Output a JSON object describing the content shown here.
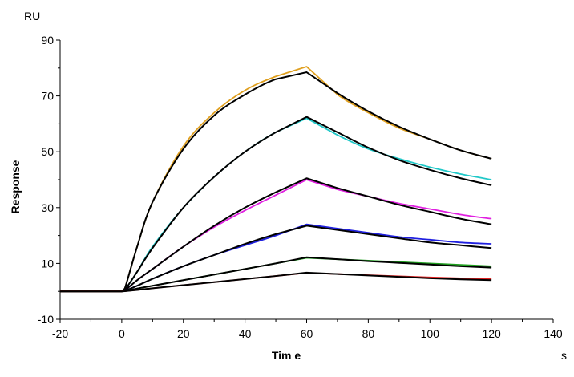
{
  "chart_data": {
    "type": "line",
    "title": "",
    "xlabel": "Tim e",
    "ylabel": "Response",
    "x_unit": "s",
    "y_unit": "RU",
    "xlim": [
      -20,
      140
    ],
    "ylim": [
      -10,
      90
    ],
    "x_ticks": [
      -20,
      0,
      20,
      40,
      60,
      80,
      100,
      120,
      140
    ],
    "y_ticks": [
      -10,
      10,
      30,
      50,
      70,
      90
    ],
    "grid": false,
    "legend": "none",
    "series": [
      {
        "color": "#e0a020",
        "x": [
          -20,
          0,
          1,
          5,
          10,
          20,
          30,
          40,
          50,
          60,
          70,
          80,
          90,
          100,
          110,
          120
        ],
        "y": [
          0,
          0,
          1,
          16,
          32,
          52,
          64,
          72,
          77,
          80.5,
          70.5,
          64,
          58.5,
          54.5,
          50.5,
          47.5
        ]
      },
      {
        "color": "#000000",
        "x": [
          -20,
          0,
          1,
          5,
          10,
          20,
          30,
          40,
          50,
          60,
          70,
          80,
          90,
          100,
          110,
          120
        ],
        "y": [
          0,
          0,
          1,
          16,
          32,
          51,
          63,
          70.5,
          76,
          78.5,
          71,
          64.5,
          59,
          54.5,
          50.5,
          47.5
        ]
      },
      {
        "color": "#20c8c8",
        "x": [
          -20,
          0,
          1,
          5,
          10,
          20,
          30,
          40,
          50,
          60,
          70,
          80,
          90,
          100,
          110,
          120
        ],
        "y": [
          0,
          0,
          0.5,
          7,
          16,
          30,
          41,
          50,
          57,
          62,
          56,
          51,
          47.5,
          44.5,
          42,
          40
        ]
      },
      {
        "color": "#000000",
        "x": [
          -20,
          0,
          1,
          5,
          10,
          20,
          30,
          40,
          50,
          60,
          70,
          80,
          90,
          100,
          110,
          120
        ],
        "y": [
          0,
          0,
          0.5,
          7,
          15.5,
          30,
          41,
          50,
          57,
          62.5,
          57,
          51.5,
          47,
          43.5,
          40.5,
          38
        ]
      },
      {
        "color": "#e020e0",
        "x": [
          -20,
          0,
          1,
          5,
          10,
          20,
          30,
          40,
          50,
          60,
          70,
          80,
          90,
          100,
          110,
          120
        ],
        "y": [
          0,
          0,
          0.3,
          4,
          8,
          16,
          23,
          29,
          34.5,
          40,
          36.5,
          34,
          31.5,
          29.5,
          27.5,
          26
        ]
      },
      {
        "color": "#000000",
        "x": [
          -20,
          0,
          1,
          5,
          10,
          20,
          30,
          40,
          50,
          60,
          70,
          80,
          90,
          100,
          110,
          120
        ],
        "y": [
          0,
          0,
          0.3,
          4,
          8,
          16,
          23.5,
          30,
          35.5,
          40.5,
          37,
          34,
          31,
          28.5,
          26,
          24
        ]
      },
      {
        "color": "#2020e0",
        "x": [
          -20,
          0,
          1,
          5,
          10,
          20,
          30,
          40,
          50,
          60,
          70,
          80,
          90,
          100,
          110,
          120
        ],
        "y": [
          0,
          0,
          0.2,
          2,
          4.5,
          9,
          13,
          16.5,
          20,
          24,
          22.5,
          21,
          19.5,
          18.5,
          17.5,
          17
        ]
      },
      {
        "color": "#000000",
        "x": [
          -20,
          0,
          1,
          5,
          10,
          20,
          30,
          40,
          50,
          60,
          70,
          80,
          90,
          100,
          110,
          120
        ],
        "y": [
          0,
          0,
          0.2,
          2,
          4.5,
          9,
          13,
          17,
          20.5,
          23.5,
          22,
          20.5,
          19,
          17.5,
          16.5,
          15.5
        ]
      },
      {
        "color": "#20a020",
        "x": [
          -20,
          0,
          1,
          5,
          10,
          20,
          30,
          40,
          50,
          60,
          70,
          80,
          90,
          100,
          110,
          120
        ],
        "y": [
          0,
          0,
          0.1,
          1,
          2,
          4,
          6,
          8,
          10,
          12,
          11.5,
          11,
          10.5,
          10,
          9.5,
          9
        ]
      },
      {
        "color": "#000000",
        "x": [
          -20,
          0,
          1,
          5,
          10,
          20,
          30,
          40,
          50,
          60,
          70,
          80,
          90,
          100,
          110,
          120
        ],
        "y": [
          0,
          0,
          0.1,
          1,
          2,
          4,
          6,
          8,
          10,
          12.2,
          11.5,
          10.8,
          10.2,
          9.6,
          9,
          8.5
        ]
      },
      {
        "color": "#e02020",
        "x": [
          -20,
          0,
          1,
          5,
          10,
          20,
          30,
          40,
          50,
          60,
          70,
          80,
          90,
          100,
          110,
          120
        ],
        "y": [
          0,
          0,
          0.05,
          0.5,
          1.1,
          2.2,
          3.3,
          4.4,
          5.5,
          6.6,
          6.2,
          5.8,
          5.4,
          5,
          4.7,
          4.4
        ]
      },
      {
        "color": "#000000",
        "x": [
          -20,
          0,
          1,
          5,
          10,
          20,
          30,
          40,
          50,
          60,
          70,
          80,
          90,
          100,
          110,
          120
        ],
        "y": [
          0,
          0,
          0.05,
          0.5,
          1.1,
          2.2,
          3.3,
          4.4,
          5.5,
          6.7,
          6.2,
          5.7,
          5.2,
          4.7,
          4.3,
          4
        ]
      }
    ]
  }
}
